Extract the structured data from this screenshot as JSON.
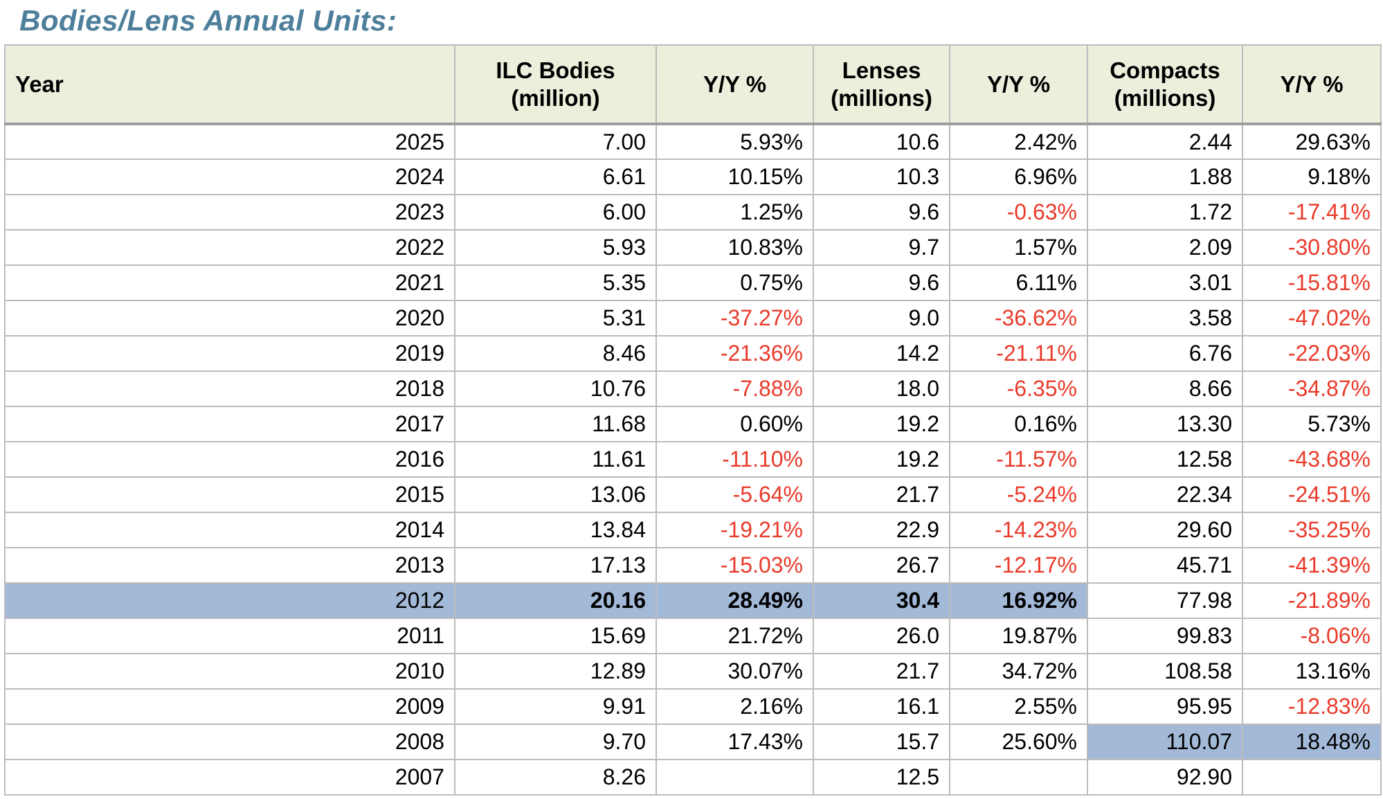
{
  "title": "Bodies/Lens Annual Units:",
  "colors": {
    "title_text": "#4d7f9b",
    "header_background": "#ebf0dc",
    "highlight_blue": "#a3b9d8",
    "negative_red": "#e93a2a",
    "grid_border": "#bcbcbc",
    "header_bottom_border": "#9c9c9c"
  },
  "table": {
    "headers": [
      {
        "label": "Year"
      },
      {
        "label": "ILC Bodies\n(million)"
      },
      {
        "label": "Y/Y %"
      },
      {
        "label": "Lenses\n(millions)"
      },
      {
        "label": "Y/Y %"
      },
      {
        "label": "Compacts\n(millions)"
      },
      {
        "label": "Y/Y %"
      }
    ],
    "rows": [
      {
        "cells": [
          {
            "t": "2025"
          },
          {
            "t": "7.00"
          },
          {
            "t": "5.93%"
          },
          {
            "t": "10.6"
          },
          {
            "t": "2.42%"
          },
          {
            "t": "2.44"
          },
          {
            "t": "29.63%"
          }
        ]
      },
      {
        "cells": [
          {
            "t": "2024"
          },
          {
            "t": "6.61"
          },
          {
            "t": "10.15%"
          },
          {
            "t": "10.3"
          },
          {
            "t": "6.96%"
          },
          {
            "t": "1.88"
          },
          {
            "t": "9.18%"
          }
        ]
      },
      {
        "cells": [
          {
            "t": "2023"
          },
          {
            "t": "6.00"
          },
          {
            "t": "1.25%"
          },
          {
            "t": "9.6"
          },
          {
            "t": "-0.63%",
            "red": true
          },
          {
            "t": "1.72"
          },
          {
            "t": "-17.41%",
            "red": true
          }
        ]
      },
      {
        "cells": [
          {
            "t": "2022"
          },
          {
            "t": "5.93"
          },
          {
            "t": "10.83%"
          },
          {
            "t": "9.7"
          },
          {
            "t": "1.57%"
          },
          {
            "t": "2.09"
          },
          {
            "t": "-30.80%",
            "red": true
          }
        ]
      },
      {
        "cells": [
          {
            "t": "2021"
          },
          {
            "t": "5.35"
          },
          {
            "t": "0.75%"
          },
          {
            "t": "9.6"
          },
          {
            "t": "6.11%"
          },
          {
            "t": "3.01"
          },
          {
            "t": "-15.81%",
            "red": true
          }
        ]
      },
      {
        "cells": [
          {
            "t": "2020"
          },
          {
            "t": "5.31"
          },
          {
            "t": "-37.27%",
            "red": true
          },
          {
            "t": "9.0"
          },
          {
            "t": "-36.62%",
            "red": true
          },
          {
            "t": "3.58"
          },
          {
            "t": "-47.02%",
            "red": true
          }
        ]
      },
      {
        "cells": [
          {
            "t": "2019"
          },
          {
            "t": "8.46"
          },
          {
            "t": "-21.36%",
            "red": true
          },
          {
            "t": "14.2"
          },
          {
            "t": "-21.11%",
            "red": true
          },
          {
            "t": "6.76"
          },
          {
            "t": "-22.03%",
            "red": true
          }
        ]
      },
      {
        "cells": [
          {
            "t": "2018"
          },
          {
            "t": "10.76"
          },
          {
            "t": "-7.88%",
            "red": true
          },
          {
            "t": "18.0"
          },
          {
            "t": "-6.35%",
            "red": true
          },
          {
            "t": "8.66"
          },
          {
            "t": "-34.87%",
            "red": true
          }
        ]
      },
      {
        "cells": [
          {
            "t": "2017"
          },
          {
            "t": "11.68"
          },
          {
            "t": "0.60%"
          },
          {
            "t": "19.2"
          },
          {
            "t": "0.16%"
          },
          {
            "t": "13.30"
          },
          {
            "t": "5.73%"
          }
        ]
      },
      {
        "cells": [
          {
            "t": "2016"
          },
          {
            "t": "11.61"
          },
          {
            "t": "-11.10%",
            "red": true
          },
          {
            "t": "19.2"
          },
          {
            "t": "-11.57%",
            "red": true
          },
          {
            "t": "12.58"
          },
          {
            "t": "-43.68%",
            "red": true
          }
        ]
      },
      {
        "cells": [
          {
            "t": "2015"
          },
          {
            "t": "13.06"
          },
          {
            "t": "-5.64%",
            "red": true
          },
          {
            "t": "21.7"
          },
          {
            "t": "-5.24%",
            "red": true
          },
          {
            "t": "22.34"
          },
          {
            "t": "-24.51%",
            "red": true
          }
        ]
      },
      {
        "cells": [
          {
            "t": "2014"
          },
          {
            "t": "13.84"
          },
          {
            "t": "-19.21%",
            "red": true
          },
          {
            "t": "22.9"
          },
          {
            "t": "-14.23%",
            "red": true
          },
          {
            "t": "29.60"
          },
          {
            "t": "-35.25%",
            "red": true
          }
        ]
      },
      {
        "cells": [
          {
            "t": "2013"
          },
          {
            "t": "17.13"
          },
          {
            "t": "-15.03%",
            "red": true
          },
          {
            "t": "26.7"
          },
          {
            "t": "-12.17%",
            "red": true
          },
          {
            "t": "45.71"
          },
          {
            "t": "-41.39%",
            "red": true
          }
        ]
      },
      {
        "cells": [
          {
            "t": "2012",
            "hl": true
          },
          {
            "t": "20.16",
            "hl": true,
            "b": true
          },
          {
            "t": "28.49%",
            "hl": true,
            "b": true
          },
          {
            "t": "30.4",
            "hl": true,
            "b": true
          },
          {
            "t": "16.92%",
            "hl": true,
            "b": true
          },
          {
            "t": "77.98"
          },
          {
            "t": "-21.89%",
            "red": true
          }
        ]
      },
      {
        "cells": [
          {
            "t": "2011"
          },
          {
            "t": "15.69"
          },
          {
            "t": "21.72%"
          },
          {
            "t": "26.0"
          },
          {
            "t": "19.87%"
          },
          {
            "t": "99.83"
          },
          {
            "t": "-8.06%",
            "red": true
          }
        ]
      },
      {
        "cells": [
          {
            "t": "2010"
          },
          {
            "t": "12.89"
          },
          {
            "t": "30.07%"
          },
          {
            "t": "21.7"
          },
          {
            "t": "34.72%"
          },
          {
            "t": "108.58"
          },
          {
            "t": "13.16%"
          }
        ]
      },
      {
        "cells": [
          {
            "t": "2009"
          },
          {
            "t": "9.91"
          },
          {
            "t": "2.16%"
          },
          {
            "t": "16.1"
          },
          {
            "t": "2.55%"
          },
          {
            "t": "95.95"
          },
          {
            "t": "-12.83%",
            "red": true
          }
        ]
      },
      {
        "cells": [
          {
            "t": "2008"
          },
          {
            "t": "9.70"
          },
          {
            "t": "17.43%"
          },
          {
            "t": "15.7"
          },
          {
            "t": "25.60%"
          },
          {
            "t": "110.07",
            "hl": true
          },
          {
            "t": "18.48%",
            "hl": true
          }
        ]
      },
      {
        "cells": [
          {
            "t": "2007"
          },
          {
            "t": "8.26"
          },
          {
            "t": ""
          },
          {
            "t": "12.5"
          },
          {
            "t": ""
          },
          {
            "t": "92.90"
          },
          {
            "t": ""
          }
        ]
      }
    ]
  }
}
